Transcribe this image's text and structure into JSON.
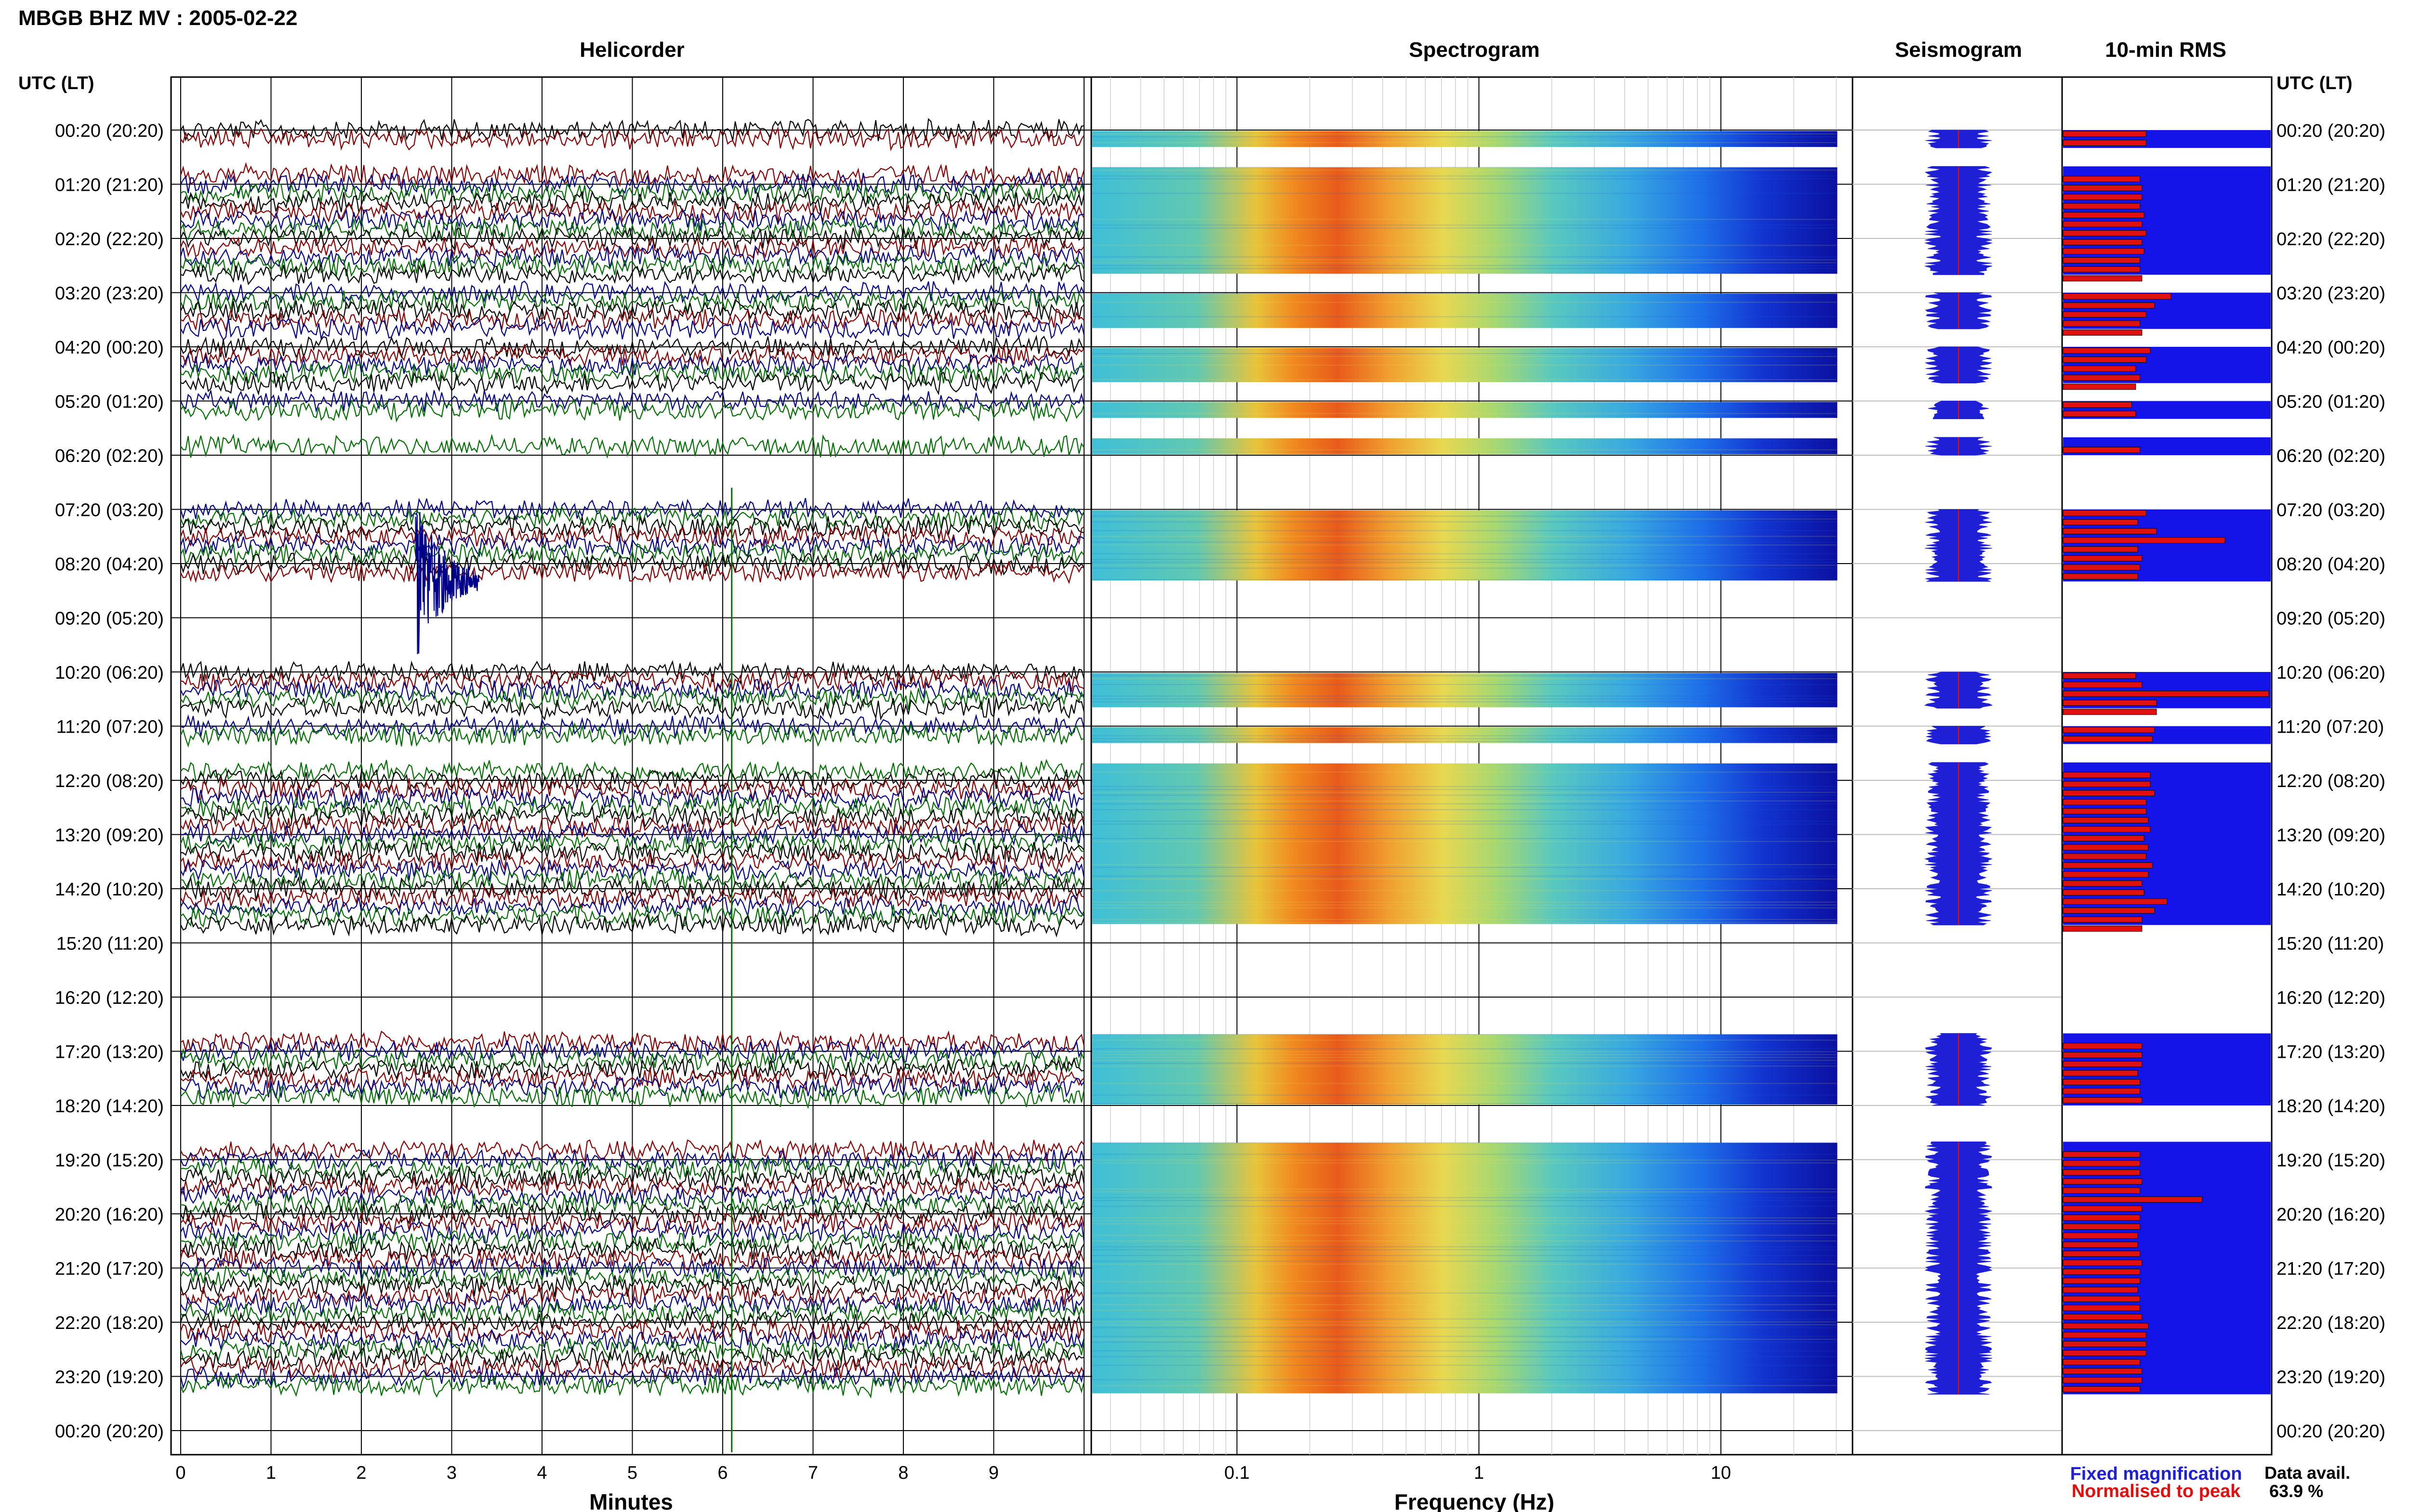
{
  "header": {
    "title": "MBGB BHZ MV : 2005-02-22"
  },
  "panels": {
    "helicorder": "Helicorder",
    "spectrogram": "Spectrogram",
    "seismogram": "Seismogram",
    "rms": "10-min RMS"
  },
  "axes": {
    "utc_label_left": "UTC (LT)",
    "utc_label_right": "UTC (LT)",
    "minutes_label": "Minutes",
    "frequency_label": "Frequency (Hz)",
    "minute_ticks": [
      "0",
      "1",
      "2",
      "3",
      "4",
      "5",
      "6",
      "7",
      "8",
      "9"
    ],
    "frequency_ticks": [
      "0.1",
      "1",
      "10"
    ],
    "time_rows": [
      "00:20 (20:20)",
      "01:20 (21:20)",
      "02:20 (22:20)",
      "03:20 (23:20)",
      "04:20 (00:20)",
      "05:20 (01:20)",
      "06:20 (02:20)",
      "07:20 (03:20)",
      "08:20 (04:20)",
      "09:20 (05:20)",
      "10:20 (06:20)",
      "11:20 (07:20)",
      "12:20 (08:20)",
      "13:20 (09:20)",
      "14:20 (10:20)",
      "15:20 (11:20)",
      "16:20 (12:20)",
      "17:20 (13:20)",
      "18:20 (14:20)",
      "19:20 (15:20)",
      "20:20 (16:20)",
      "21:20 (17:20)",
      "22:20 (18:20)",
      "23:20 (19:20)",
      "00:20 (20:20)"
    ]
  },
  "legend": {
    "fixed": "Fixed magnification",
    "normalised": "Normalised to peak",
    "fixed_color": "#1f1fd6",
    "normalised_color": "#e01010"
  },
  "data_availability": {
    "label": "Data avail.",
    "value": "63.9 %"
  },
  "chart_data": {
    "type": "seismic-day-plot",
    "trace_colors": [
      "#000000",
      "#8b0000",
      "#00008b",
      "#007000"
    ],
    "data_segments_hours": [
      [
        0.0,
        0.33
      ],
      [
        0.67,
        2.67
      ],
      [
        3.0,
        3.67
      ],
      [
        4.0,
        4.67
      ],
      [
        5.0,
        5.33
      ],
      [
        5.67,
        6.0
      ],
      [
        7.0,
        8.33
      ],
      [
        10.0,
        10.67
      ],
      [
        11.0,
        11.33
      ],
      [
        11.67,
        14.67
      ],
      [
        16.67,
        18.0
      ],
      [
        18.67,
        23.33
      ]
    ],
    "rms_bar_fraction": [
      0.4,
      0.4,
      0.37,
      0.38,
      0.38,
      0.37,
      0.39,
      0.38,
      0.4,
      0.38,
      0.39,
      0.37,
      0.37,
      0.38,
      0.52,
      0.44,
      0.4,
      0.37,
      0.38,
      0.42,
      0.4,
      0.35,
      0.37,
      0.35,
      0.33,
      0.35,
      0.37,
      0.4,
      0.36,
      0.45,
      0.78,
      0.36,
      0.38,
      0.37,
      0.36,
      0.35,
      0.38,
      0.99,
      0.45,
      0.45,
      0.44,
      0.43,
      0.42,
      0.42,
      0.44,
      0.4,
      0.4,
      0.41,
      0.42,
      0.39,
      0.41,
      0.4,
      0.43,
      0.41,
      0.38,
      0.39,
      0.5,
      0.44,
      0.38,
      0.38,
      0.38,
      0.38,
      0.38,
      0.36,
      0.37,
      0.37,
      0.38,
      0.37,
      0.37,
      0.37,
      0.38,
      0.37,
      0.67,
      0.38,
      0.37,
      0.37,
      0.36,
      0.36,
      0.37,
      0.38,
      0.37,
      0.37,
      0.36,
      0.37,
      0.37,
      0.38,
      0.41,
      0.4
    ]
  }
}
